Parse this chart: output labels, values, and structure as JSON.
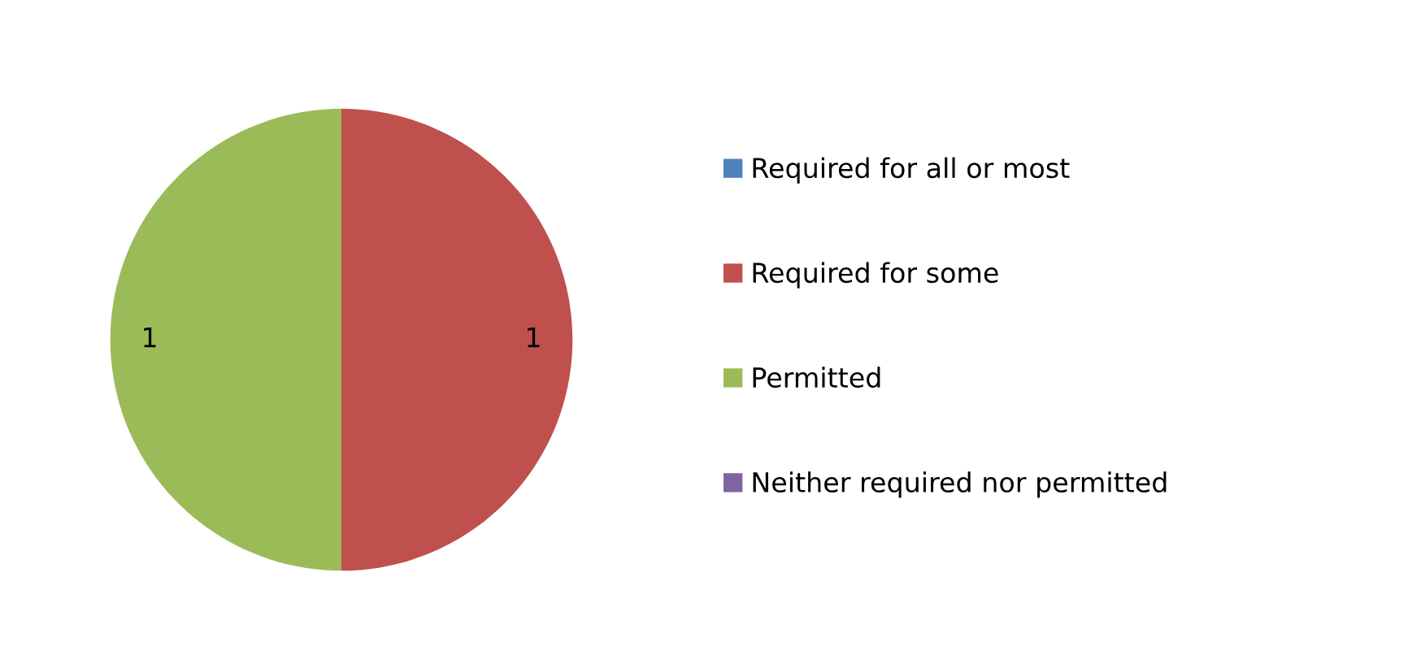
{
  "chart_data": {
    "type": "pie",
    "categories": [
      "Required for all or most",
      "Required for some",
      "Permitted",
      "Neither required nor permitted"
    ],
    "values": [
      0,
      1,
      1,
      0
    ],
    "colors": [
      "#4f81bd",
      "#c0504d",
      "#9bbb59",
      "#8064a2"
    ],
    "value_labels": [
      null,
      "1",
      "1",
      null
    ],
    "legend": "right"
  }
}
